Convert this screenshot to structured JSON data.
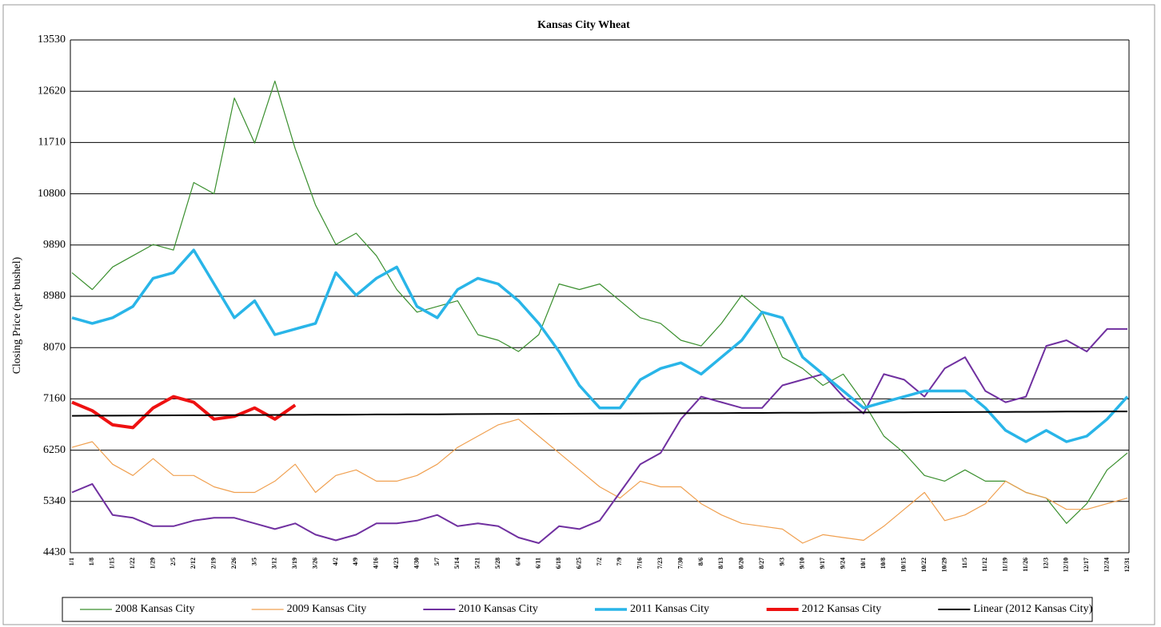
{
  "chart_data": {
    "type": "line",
    "title": "Kansas City Wheat",
    "y_label": "Closing Price (per bushel)",
    "categories": [
      "1/1",
      "1/8",
      "1/15",
      "1/22",
      "1/29",
      "2/5",
      "2/12",
      "2/19",
      "2/26",
      "3/5",
      "3/12",
      "3/19",
      "3/26",
      "4/2",
      "4/9",
      "4/16",
      "4/23",
      "4/30",
      "5/7",
      "5/14",
      "5/21",
      "5/28",
      "6/4",
      "6/11",
      "6/18",
      "6/25",
      "7/2",
      "7/9",
      "7/16",
      "7/23",
      "7/30",
      "8/6",
      "8/13",
      "8/20",
      "8/27",
      "9/3",
      "9/10",
      "9/17",
      "9/24",
      "10/1",
      "10/8",
      "10/15",
      "10/22",
      "10/29",
      "11/5",
      "11/12",
      "11/19",
      "11/26",
      "12/3",
      "12/10",
      "12/17",
      "12/24",
      "12/31"
    ],
    "ylim": [
      4430,
      13530
    ],
    "yticks": [
      4430,
      5340,
      6250,
      7160,
      8070,
      8980,
      9890,
      10800,
      11710,
      12620,
      13530
    ],
    "grid": true,
    "series": [
      {
        "name": "2008 Kansas City",
        "color": "#3a8f2e",
        "width": 1.2,
        "values": [
          9400,
          9100,
          9500,
          9700,
          9900,
          9800,
          11000,
          10800,
          12500,
          11700,
          12800,
          11600,
          10600,
          9900,
          10100,
          9700,
          9100,
          8700,
          8800,
          8900,
          8300,
          8200,
          8000,
          8300,
          9200,
          9100,
          9200,
          8900,
          8600,
          8500,
          8200,
          8100,
          8500,
          9000,
          8700,
          7900,
          7700,
          7400,
          7600,
          7100,
          6500,
          6200,
          5800,
          5700,
          5900,
          5700,
          5700,
          5500,
          5400,
          4950,
          5300,
          5900,
          6200
        ]
      },
      {
        "name": "2009 Kansas City",
        "color": "#f0a050",
        "width": 1.2,
        "values": [
          6300,
          6400,
          6000,
          5800,
          6100,
          5800,
          5800,
          5600,
          5500,
          5500,
          5700,
          6000,
          5500,
          5800,
          5900,
          5700,
          5700,
          5800,
          6000,
          6300,
          6500,
          6700,
          6800,
          6500,
          6200,
          5900,
          5600,
          5400,
          5700,
          5600,
          5600,
          5300,
          5100,
          4950,
          4900,
          4850,
          4600,
          4750,
          4700,
          4650,
          4900,
          5200,
          5500,
          5000,
          5100,
          5300,
          5700,
          5500,
          5400,
          5200,
          5200,
          5300,
          5400
        ]
      },
      {
        "name": "2010 Kansas City",
        "color": "#7030a0",
        "width": 2,
        "values": [
          5500,
          5650,
          5100,
          5050,
          4900,
          4900,
          5000,
          5050,
          5050,
          4950,
          4850,
          4950,
          4750,
          4650,
          4750,
          4950,
          4950,
          5000,
          5100,
          4900,
          4950,
          4900,
          4700,
          4600,
          4900,
          4850,
          5000,
          5500,
          6000,
          6200,
          6800,
          7200,
          7100,
          7000,
          7000,
          7400,
          7500,
          7600,
          7200,
          6900,
          7600,
          7500,
          7200,
          7700,
          7900,
          7300,
          7100,
          7200,
          8100,
          8200,
          8000,
          8400,
          8400
        ]
      },
      {
        "name": "2011 Kansas City",
        "color": "#29b5e8",
        "width": 3.5,
        "values": [
          8600,
          8500,
          8600,
          8800,
          9300,
          9400,
          9800,
          9200,
          8600,
          8900,
          8300,
          8400,
          8500,
          9400,
          9000,
          9300,
          9500,
          8800,
          8600,
          9100,
          9300,
          9200,
          8900,
          8500,
          8000,
          7400,
          7000,
          7000,
          7500,
          7700,
          7800,
          7600,
          7900,
          8200,
          8700,
          8600,
          7900,
          7600,
          7300,
          7000,
          7100,
          7200,
          7300,
          7300,
          7300,
          7000,
          6600,
          6400,
          6600,
          6400,
          6500,
          6800,
          7200
        ]
      },
      {
        "name": "2012 Kansas City",
        "color": "#ee1111",
        "width": 4,
        "values": [
          7100,
          6950,
          6700,
          6650,
          7000,
          7200,
          7100,
          6800,
          6850,
          7000,
          6800,
          7050,
          null,
          null,
          null,
          null,
          null,
          null,
          null,
          null,
          null,
          null,
          null,
          null,
          null,
          null,
          null,
          null,
          null,
          null,
          null,
          null,
          null,
          null,
          null,
          null,
          null,
          null,
          null,
          null,
          null,
          null,
          null,
          null,
          null,
          null,
          null,
          null,
          null,
          null,
          null,
          null,
          null
        ]
      },
      {
        "name": "Linear (2012 Kansas City)",
        "color": "#000000",
        "width": 2,
        "values": [
          6860,
          6862,
          6863,
          6865,
          6866,
          6868,
          6869,
          6871,
          6872,
          6874,
          6875,
          6877,
          6878,
          6880,
          6881,
          6883,
          6884,
          6886,
          6887,
          6889,
          6890,
          6892,
          6893,
          6895,
          6896,
          6898,
          6899,
          6901,
          6902,
          6904,
          6905,
          6907,
          6908,
          6910,
          6911,
          6913,
          6914,
          6916,
          6917,
          6919,
          6920,
          6922,
          6923,
          6925,
          6926,
          6928,
          6929,
          6931,
          6932,
          6934,
          6935,
          6937,
          6938
        ]
      }
    ]
  }
}
